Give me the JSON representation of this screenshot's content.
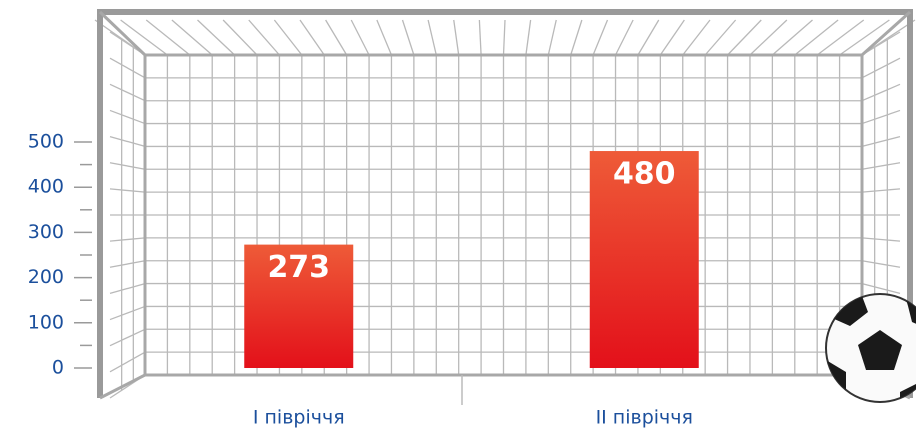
{
  "chart_data": {
    "type": "bar",
    "categories": [
      "I півріччя",
      "II півріччя"
    ],
    "values": [
      273,
      480
    ],
    "ylim": [
      0,
      500
    ],
    "yticks": [
      0,
      100,
      200,
      300,
      400,
      500
    ],
    "yminor_ticks": [
      50,
      150,
      250,
      350,
      450
    ],
    "color": [
      "#ee5b38",
      "#e3101a"
    ]
  }
}
